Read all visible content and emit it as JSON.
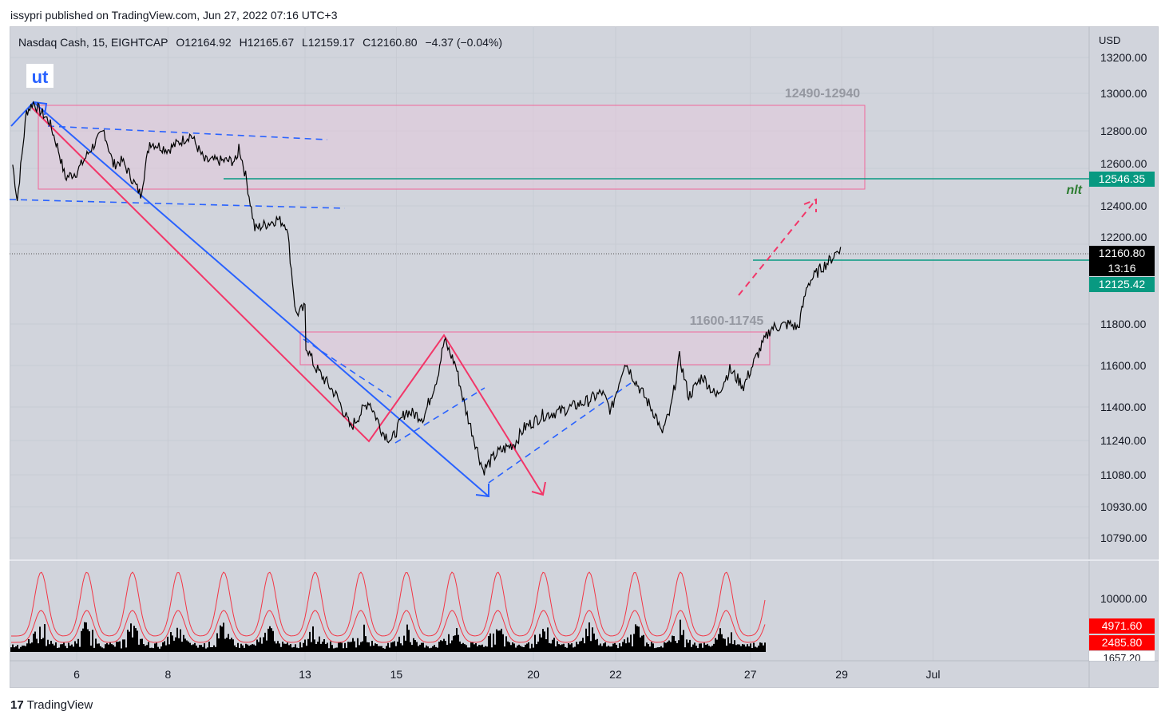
{
  "header": {
    "published": "issypri published on TradingView.com, Jun 27, 2022 07:16 UTC+3"
  },
  "legend": {
    "symbol": "Nasdaq Cash, 15, EIGHTCAP",
    "open": "O12164.92",
    "high": "H12165.67",
    "low": "L12159.17",
    "close": "C12160.80",
    "change": "−4.37 (−0.04%)"
  },
  "branding": "TradingView",
  "chart_data": {
    "type": "line",
    "title": "Nasdaq Cash, 15, EIGHTCAP",
    "ylabel": "USD",
    "yticks": [
      "13200.00",
      "13000.00",
      "12800.00",
      "12600.00",
      "12400.00",
      "12200.00",
      "11800.00",
      "11600.00",
      "11400.00",
      "11240.00",
      "11080.00",
      "10930.00",
      "10790.00"
    ],
    "ytick_values": [
      13200,
      13000,
      12800,
      12600,
      12400,
      12200,
      11800,
      11600,
      11400,
      11240,
      11080,
      10930,
      10790
    ],
    "xticks": [
      {
        "label": "6",
        "t": 0
      },
      {
        "label": "8",
        "t": 2
      },
      {
        "label": "13",
        "t": 5
      },
      {
        "label": "15",
        "t": 7
      },
      {
        "label": "20",
        "t": 10
      },
      {
        "label": "22",
        "t": 11.8
      },
      {
        "label": "27",
        "t": 14.75
      },
      {
        "label": "29",
        "t": 16.75
      },
      {
        "label": "Jul",
        "t": 18.75
      }
    ],
    "price_path": [
      [
        -1.4,
        12620
      ],
      [
        -1.3,
        12430
      ],
      [
        -1.1,
        12900
      ],
      [
        -0.95,
        12950
      ],
      [
        -0.6,
        12850
      ],
      [
        -0.4,
        12700
      ],
      [
        -0.25,
        12550
      ],
      [
        0,
        12580
      ],
      [
        0.3,
        12700
      ],
      [
        0.6,
        12800
      ],
      [
        0.8,
        12620
      ],
      [
        1.0,
        12640
      ],
      [
        1.4,
        12460
      ],
      [
        1.6,
        12740
      ],
      [
        2,
        12700
      ],
      [
        2.5,
        12780
      ],
      [
        2.8,
        12640
      ],
      [
        3.5,
        12640
      ],
      [
        3.55,
        12720
      ],
      [
        3.7,
        12560
      ],
      [
        3.9,
        12280
      ],
      [
        4.4,
        12330
      ],
      [
        4.6,
        12300
      ],
      [
        4.8,
        11850
      ],
      [
        5.0,
        11880
      ],
      [
        5.02,
        11700
      ],
      [
        5.2,
        11600
      ],
      [
        5.7,
        11450
      ],
      [
        6.0,
        11300
      ],
      [
        6.4,
        11430
      ],
      [
        6.7,
        11280
      ],
      [
        6.9,
        11240
      ],
      [
        7.2,
        11380
      ],
      [
        7.6,
        11350
      ],
      [
        7.9,
        11550
      ],
      [
        8.05,
        11720
      ],
      [
        8.3,
        11600
      ],
      [
        8.5,
        11400
      ],
      [
        8.7,
        11250
      ],
      [
        8.9,
        11100
      ],
      [
        9.2,
        11180
      ],
      [
        9.6,
        11230
      ],
      [
        9.8,
        11300
      ],
      [
        10.2,
        11360
      ],
      [
        10.6,
        11380
      ],
      [
        11.2,
        11430
      ],
      [
        11.5,
        11470
      ],
      [
        11.7,
        11380
      ],
      [
        12.0,
        11620
      ],
      [
        12.3,
        11500
      ],
      [
        12.7,
        11350
      ],
      [
        12.8,
        11270
      ],
      [
        13.0,
        11380
      ],
      [
        13.2,
        11640
      ],
      [
        13.4,
        11450
      ],
      [
        13.7,
        11550
      ],
      [
        14.0,
        11450
      ],
      [
        14.3,
        11580
      ],
      [
        14.6,
        11500
      ],
      [
        14.9,
        11650
      ],
      [
        15.2,
        11780
      ],
      [
        15.6,
        11800
      ],
      [
        15.8,
        11780
      ],
      [
        16.0,
        12000
      ],
      [
        16.3,
        12080
      ],
      [
        16.5,
        12120
      ],
      [
        16.7,
        12180
      ],
      [
        16.75,
        12160
      ]
    ],
    "price_labels": {
      "last": "12160.80",
      "countdown": "13:16",
      "level1": "12546.35",
      "level2": "12125.42"
    },
    "annotations": {
      "ut": "ut",
      "zone_top": "12490-12940",
      "zone_bottom": "11600-11745",
      "nlt": "nlt"
    },
    "volume_axis": {
      "tick": "10000.00",
      "v1": "4971.60",
      "v2": "2485.80",
      "v3": "1657.20"
    },
    "colors": {
      "bg": "#d1d4dc",
      "green": "#089981",
      "red": "#ff0000",
      "blue": "#2962ff",
      "pink": "#f23668"
    }
  }
}
